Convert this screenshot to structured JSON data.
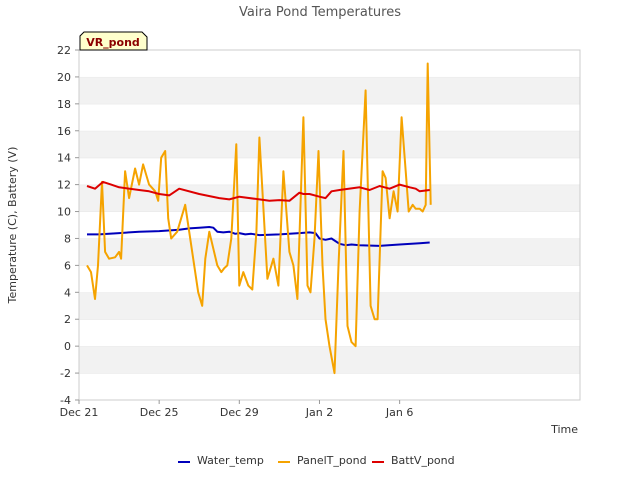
{
  "chart_data": {
    "type": "line",
    "title": "Vaira Pond Temperatures",
    "badge": "VR_pond",
    "xlabel": "Time",
    "ylabel": "Temperature (C), Battery (V)",
    "ylim": [
      -4,
      22
    ],
    "yticks": [
      -4,
      -2,
      0,
      2,
      4,
      6,
      8,
      10,
      12,
      14,
      16,
      18,
      20,
      22
    ],
    "xlim": [
      0,
      25
    ],
    "xticks": [
      {
        "value": 0,
        "label": "Dec 21"
      },
      {
        "value": 4,
        "label": "Dec 25"
      },
      {
        "value": 8,
        "label": "Dec 29"
      },
      {
        "value": 12,
        "label": "Jan 2"
      },
      {
        "value": 16,
        "label": "Jan 6"
      }
    ],
    "grid": "horizontal alternating bands",
    "legend_position": "bottom",
    "series": [
      {
        "name": "Water_temp",
        "color": "#0000bb",
        "x": [
          0.4,
          1.0,
          2.0,
          3.0,
          4.0,
          5.0,
          5.5,
          6.0,
          6.5,
          6.7,
          6.9,
          7.2,
          7.5,
          7.8,
          8.0,
          8.3,
          8.6,
          9.0,
          10.0,
          10.5,
          11.0,
          11.5,
          11.8,
          12.0,
          12.3,
          12.6,
          13.0,
          13.3,
          13.6,
          14.0,
          15.0,
          16.0,
          17.0,
          17.5
        ],
        "y": [
          8.3,
          8.3,
          8.4,
          8.5,
          8.55,
          8.65,
          8.75,
          8.8,
          8.85,
          8.8,
          8.5,
          8.45,
          8.5,
          8.35,
          8.4,
          8.3,
          8.35,
          8.25,
          8.3,
          8.35,
          8.4,
          8.45,
          8.4,
          8.0,
          7.9,
          8.0,
          7.6,
          7.5,
          7.55,
          7.5,
          7.45,
          7.55,
          7.65,
          7.7
        ]
      },
      {
        "name": "PanelT_pond",
        "color": "#f5a300",
        "x": [
          0.4,
          0.6,
          0.8,
          0.95,
          1.15,
          1.3,
          1.5,
          1.8,
          2.0,
          2.1,
          2.3,
          2.5,
          2.8,
          3.0,
          3.2,
          3.5,
          3.8,
          3.95,
          4.1,
          4.3,
          4.45,
          4.6,
          4.9,
          5.3,
          5.6,
          5.95,
          6.15,
          6.3,
          6.5,
          6.9,
          7.1,
          7.25,
          7.4,
          7.6,
          7.85,
          8.0,
          8.2,
          8.45,
          8.65,
          8.85,
          9.0,
          9.4,
          9.7,
          9.95,
          10.2,
          10.5,
          10.7,
          10.9,
          11.2,
          11.4,
          11.55,
          11.75,
          11.95,
          12.15,
          12.3,
          12.5,
          12.75,
          12.95,
          13.2,
          13.4,
          13.6,
          13.8,
          14.0,
          14.3,
          14.55,
          14.75,
          14.9,
          15.15,
          15.3,
          15.5,
          15.7,
          15.9,
          16.1,
          16.3,
          16.45,
          16.65,
          16.8,
          17.0,
          17.15,
          17.3,
          17.4,
          17.55
        ],
        "y": [
          6.0,
          5.5,
          3.5,
          6.0,
          12.2,
          7.0,
          6.5,
          6.6,
          7.0,
          6.5,
          13.0,
          11.0,
          13.2,
          12.0,
          13.5,
          12.0,
          11.5,
          10.8,
          14.0,
          14.5,
          9.5,
          8.0,
          8.5,
          10.5,
          7.5,
          4.0,
          3.0,
          6.5,
          8.5,
          6.0,
          5.5,
          5.8,
          6.0,
          8.0,
          15.0,
          4.5,
          5.5,
          4.5,
          4.2,
          8.5,
          15.5,
          5.0,
          6.5,
          4.5,
          13.0,
          7.0,
          6.0,
          3.5,
          17.0,
          4.5,
          4.0,
          8.0,
          14.5,
          6.0,
          2.0,
          0.0,
          -2.0,
          6.0,
          14.5,
          1.5,
          0.3,
          0.0,
          10.0,
          19.0,
          3.0,
          2.0,
          2.0,
          13.0,
          12.5,
          9.5,
          11.5,
          10.0,
          17.0,
          13.0,
          10.0,
          10.5,
          10.2,
          10.2,
          10.0,
          10.5,
          21.0,
          10.5
        ]
      },
      {
        "name": "BattV_pond",
        "color": "#dd0000",
        "x": [
          0.4,
          0.8,
          1.2,
          1.6,
          2.0,
          3.0,
          3.5,
          4.0,
          4.5,
          5.0,
          6.0,
          7.0,
          7.5,
          8.0,
          9.0,
          9.5,
          10.0,
          10.5,
          11.0,
          11.2,
          11.5,
          12.0,
          12.3,
          12.6,
          13.0,
          14.0,
          14.5,
          15.0,
          15.5,
          16.0,
          16.5,
          16.8,
          17.0,
          17.5
        ],
        "y": [
          11.9,
          11.7,
          12.2,
          12.0,
          11.8,
          11.6,
          11.5,
          11.3,
          11.2,
          11.7,
          11.3,
          11.0,
          10.9,
          11.1,
          10.9,
          10.8,
          10.85,
          10.8,
          11.4,
          11.3,
          11.3,
          11.1,
          11.0,
          11.5,
          11.6,
          11.8,
          11.6,
          11.9,
          11.7,
          12.0,
          11.8,
          11.7,
          11.5,
          11.6
        ]
      }
    ]
  }
}
